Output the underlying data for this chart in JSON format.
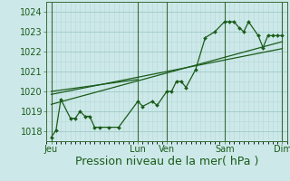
{
  "xlabel": "Pression niveau de la mer( hPa )",
  "bg_color": "#cce8e8",
  "line_color": "#1a5c1a",
  "grid_major_color": "#a0c8c8",
  "grid_minor_color": "#b8d8d8",
  "vline_color": "#3a6b3a",
  "ylim": [
    1017.5,
    1024.5
  ],
  "xlim": [
    0,
    25
  ],
  "yticks": [
    1018,
    1019,
    1020,
    1021,
    1022,
    1023,
    1024
  ],
  "x_day_labels": [
    "Jeu",
    "Lun",
    "Ven",
    "Sam",
    "Dim"
  ],
  "x_day_positions": [
    0.5,
    9.5,
    12.5,
    18.5,
    24.5
  ],
  "vline_positions": [
    0.5,
    9.5,
    12.5,
    18.5,
    24.5
  ],
  "data_x": [
    0.5,
    1.0,
    1.5,
    2.5,
    3.0,
    3.5,
    4.0,
    4.5,
    5.0,
    5.5,
    6.5,
    7.5,
    9.5,
    10.0,
    11.0,
    11.5,
    12.5,
    13.0,
    13.5,
    14.0,
    14.5,
    15.5,
    16.5,
    17.5,
    18.5,
    19.0,
    19.5,
    20.0,
    20.5,
    21.0,
    22.0,
    22.5,
    23.0,
    23.5,
    24.0,
    24.5
  ],
  "data_y": [
    1017.7,
    1018.05,
    1019.6,
    1018.65,
    1018.65,
    1019.0,
    1018.75,
    1018.75,
    1018.2,
    1018.2,
    1018.2,
    1018.2,
    1019.5,
    1019.25,
    1019.5,
    1019.3,
    1020.0,
    1020.0,
    1020.5,
    1020.5,
    1020.2,
    1021.1,
    1022.7,
    1023.0,
    1023.5,
    1023.5,
    1023.5,
    1023.2,
    1023.0,
    1023.5,
    1022.8,
    1022.2,
    1022.8,
    1022.8,
    1022.8,
    1022.8
  ],
  "trend1_x": [
    0.5,
    24.5
  ],
  "trend1_y": [
    1019.35,
    1022.5
  ],
  "trend2_x": [
    0.5,
    24.5
  ],
  "trend2_y": [
    1019.85,
    1022.15
  ],
  "trend3_x": [
    0.5,
    9.5
  ],
  "trend3_y": [
    1020.0,
    1020.6
  ],
  "font_color": "#1a5c1a",
  "font_size": 7,
  "xlabel_font_size": 9
}
